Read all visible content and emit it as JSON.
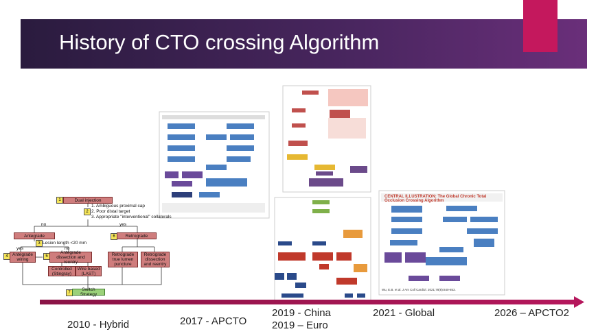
{
  "title": "History of CTO crossing Algorithm",
  "hybrid": {
    "nodes": [
      {
        "number": "1",
        "label": "Dual injection"
      },
      {
        "number": "2",
        "criteria": [
          "1. Ambiguous proximal cap",
          "2. Poor distal target",
          "3. Appropriate \"interventional\" collaterals"
        ]
      },
      {
        "label": "Antegrade"
      },
      {
        "number": "6",
        "label": "Retrograde"
      },
      {
        "number": "3",
        "label": "Lesion length <20 mm"
      },
      {
        "number": "4",
        "label": "Antegrade wiring"
      },
      {
        "number": "5",
        "label": "Antegrade dissection and reentry"
      },
      {
        "label": "Controlled (Stingray)"
      },
      {
        "label": "Wire based (LAST)"
      },
      {
        "label": "Retrograde true lumen puncture"
      },
      {
        "label": "Retrograde dissection and reentry"
      },
      {
        "number": "7",
        "label": "Switch Strategy"
      }
    ],
    "edge_labels": [
      "no",
      "yes",
      "yes",
      "no"
    ]
  },
  "global_illustration": {
    "heading": "CENTRAL ILLUSTRATION: The Global Chronic Total Occlusion Crossing Algorithm",
    "citation": "Wu, E.B. et al. J Am Coll Cardiol. 2021;78(8):840-853."
  },
  "timeline": [
    "2010 - Hybrid",
    "2017 - APCTO",
    "2019 - China",
    "2019 – Euro",
    "2021 - Global",
    "2026 – APCTO2"
  ]
}
